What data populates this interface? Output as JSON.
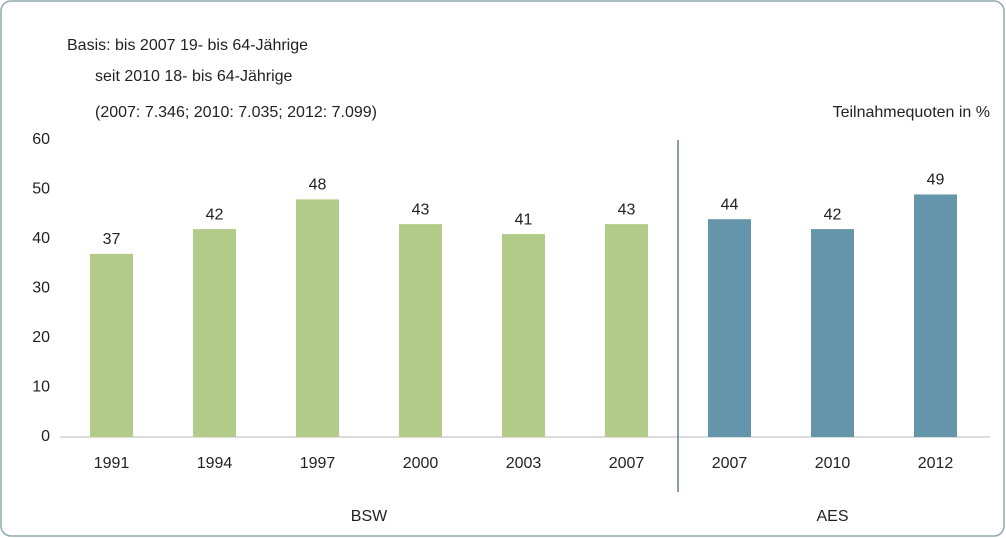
{
  "chart_data": {
    "type": "bar",
    "notes": [
      "Basis: bis 2007 19- bis 64-Jährige",
      "seit 2010 18- bis 64-Jährige",
      "(2007: 7.346; 2010: 7.035; 2012: 7.099)"
    ],
    "unit_label": "Teilnahmequoten in %",
    "groups": [
      {
        "name": "BSW",
        "color": "#b3cb89",
        "categories": [
          "1991",
          "1994",
          "1997",
          "2000",
          "2003",
          "2007"
        ],
        "values": [
          37,
          42,
          48,
          43,
          41,
          43
        ]
      },
      {
        "name": "AES",
        "color": "#6595aa",
        "categories": [
          "2007",
          "2010",
          "2012"
        ],
        "values": [
          44,
          42,
          49
        ]
      }
    ],
    "ylim": [
      0,
      60
    ],
    "yticks": [
      0,
      10,
      20,
      30,
      40,
      50,
      60
    ],
    "grid": false
  }
}
